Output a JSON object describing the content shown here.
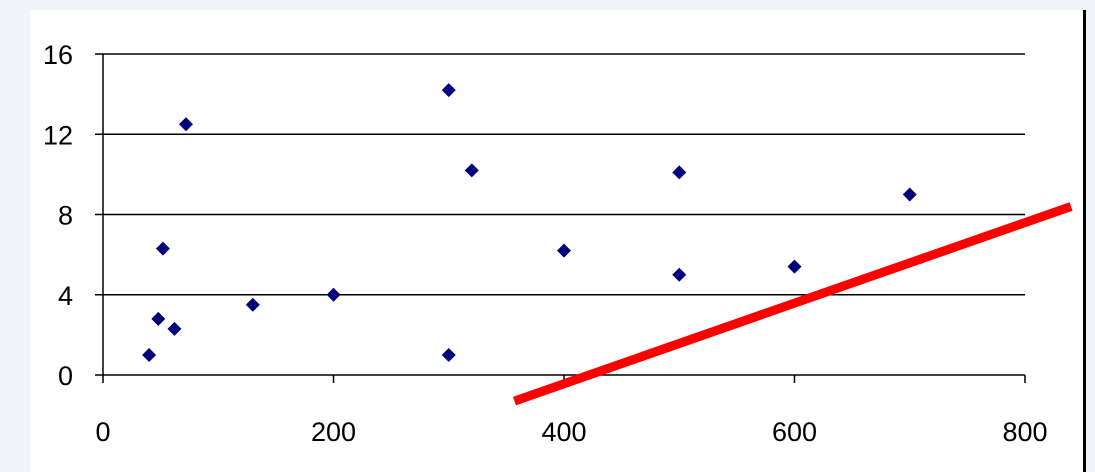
{
  "chart_data": {
    "type": "scatter",
    "title": "",
    "xlabel": "",
    "ylabel": "",
    "xlim": [
      0,
      800
    ],
    "ylim": [
      0,
      16
    ],
    "x_ticks": [
      "0",
      "200",
      "400",
      "600",
      "800"
    ],
    "y_ticks": [
      "0",
      "4",
      "8",
      "12",
      "16"
    ],
    "grid": "horizontal",
    "series": [
      {
        "marker": "diamond",
        "color": "#00007a",
        "points": [
          {
            "x": 40,
            "y": 1.0
          },
          {
            "x": 48,
            "y": 2.8
          },
          {
            "x": 52,
            "y": 6.3
          },
          {
            "x": 62,
            "y": 2.3
          },
          {
            "x": 72,
            "y": 12.5
          },
          {
            "x": 130,
            "y": 3.5
          },
          {
            "x": 200,
            "y": 4.0
          },
          {
            "x": 300,
            "y": 14.2
          },
          {
            "x": 300,
            "y": 1.0
          },
          {
            "x": 320,
            "y": 10.2
          },
          {
            "x": 400,
            "y": 6.2
          },
          {
            "x": 500,
            "y": 10.1
          },
          {
            "x": 500,
            "y": 5.0
          },
          {
            "x": 600,
            "y": 5.4
          },
          {
            "x": 700,
            "y": 9.0
          }
        ]
      }
    ],
    "trend_line": {
      "color": "#ff0000",
      "from": {
        "x": 357,
        "y": -1.3
      },
      "to": {
        "x": 840,
        "y": 8.4
      }
    }
  }
}
